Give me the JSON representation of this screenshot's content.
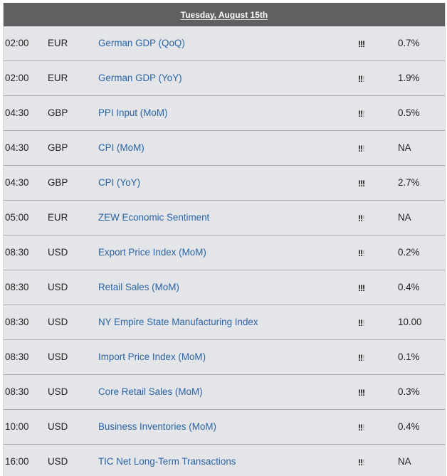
{
  "header": {
    "date": "Tuesday, August 15th"
  },
  "events": [
    {
      "time": "02:00",
      "currency": "EUR",
      "event": "German GDP (QoQ)",
      "importance": 3,
      "forecast": "0.7%"
    },
    {
      "time": "02:00",
      "currency": "EUR",
      "event": "German GDP (YoY)",
      "importance": 2,
      "forecast": "1.9%"
    },
    {
      "time": "04:30",
      "currency": "GBP",
      "event": "PPI Input (MoM)",
      "importance": 2,
      "forecast": "0.5%"
    },
    {
      "time": "04:30",
      "currency": "GBP",
      "event": "CPI (MoM)",
      "importance": 2,
      "forecast": "NA"
    },
    {
      "time": "04:30",
      "currency": "GBP",
      "event": "CPI (YoY)",
      "importance": 3,
      "forecast": "2.7%"
    },
    {
      "time": "05:00",
      "currency": "EUR",
      "event": "ZEW Economic Sentiment",
      "importance": 2,
      "forecast": "NA"
    },
    {
      "time": "08:30",
      "currency": "USD",
      "event": "Export Price Index (MoM)",
      "importance": 2,
      "forecast": "0.2%"
    },
    {
      "time": "08:30",
      "currency": "USD",
      "event": "Retail Sales (MoM)",
      "importance": 3,
      "forecast": "0.4%"
    },
    {
      "time": "08:30",
      "currency": "USD",
      "event": "NY Empire State Manufacturing Index",
      "importance": 2,
      "forecast": "10.00"
    },
    {
      "time": "08:30",
      "currency": "USD",
      "event": "Import Price Index (MoM)",
      "importance": 2,
      "forecast": "0.1%"
    },
    {
      "time": "08:30",
      "currency": "USD",
      "event": "Core Retail Sales (MoM)",
      "importance": 3,
      "forecast": "0.3%"
    },
    {
      "time": "10:00",
      "currency": "USD",
      "event": "Business Inventories (MoM)",
      "importance": 2,
      "forecast": "0.4%"
    },
    {
      "time": "16:00",
      "currency": "USD",
      "event": "TIC Net Long-Term Transactions",
      "importance": 2,
      "forecast": "NA"
    }
  ],
  "colors": {
    "header_bg": "#5f6062",
    "row_bg": "#e4e5e8",
    "link": "#2a64a6",
    "importance_on": "#111111",
    "importance_off": "#b9bcb7"
  },
  "icons": {
    "importance": "exclamation-marks-icon"
  }
}
